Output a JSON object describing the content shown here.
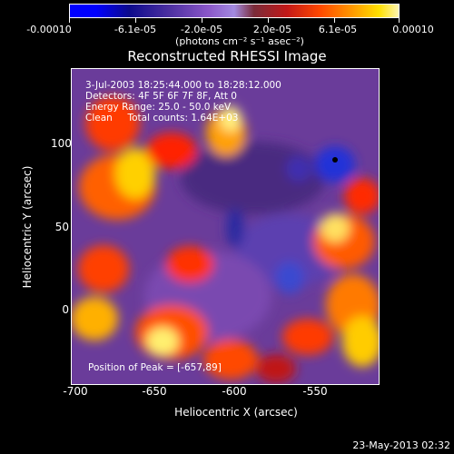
{
  "colorbar": {
    "ticks": [
      "-0.00010",
      "-6.1e-05",
      "-2.0e-05",
      "2.0e-05",
      "6.1e-05",
      "0.00010"
    ],
    "unit": "(photons cm⁻² s⁻¹ asec⁻²)"
  },
  "title": "Reconstructed RHESSI Image",
  "info": {
    "time": "3-Jul-2003 18:25:44.000 to 18:28:12.000",
    "detectors": "Detectors: 4F 5F 6F 7F 8F, Att 0",
    "energy": "Energy Range: 25.0 - 50.0 keV",
    "clean": "Clean     Total counts: 1.64E+03",
    "peak": "Position of Peak = [-657,89]"
  },
  "axes": {
    "xlabel": "Heliocentric X (arcsec)",
    "ylabel": "Heliocentric Y (arcsec)",
    "xticks": [
      "-700",
      "-650",
      "-600",
      "-550"
    ],
    "yticks": [
      "100",
      "50",
      "0"
    ]
  },
  "stamp": "23-May-2013 02:32"
}
